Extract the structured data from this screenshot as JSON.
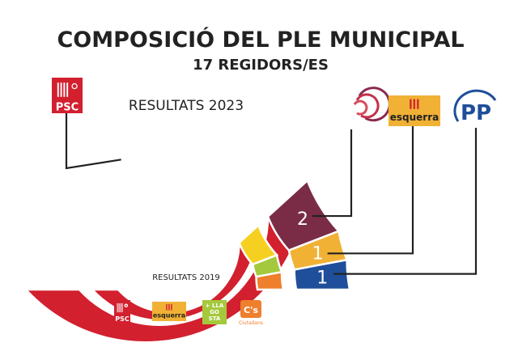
{
  "title": "COMPOSICIÓ DEL PLE MUNICIPAL",
  "subtitle": "17 REGIDORS/ES",
  "chart_data": [
    {
      "type": "pie",
      "title": "RESULTATS 2023",
      "series": [
        {
          "name": "PSC",
          "value": 13,
          "color": "#d2202f",
          "logo_text": "PSC",
          "icon": "psc-logo-icon"
        },
        {
          "name": "",
          "value": 2,
          "color": "#7a2c47",
          "icon": "comuns-logo-icon"
        },
        {
          "name": "esquerra",
          "value": 1,
          "color": "#f0b135",
          "logo_text": "esquerra",
          "icon": "esquerra-logo-icon"
        },
        {
          "name": "PP",
          "value": 1,
          "color": "#1f4e9a",
          "logo_text": "PP",
          "icon": "pp-logo-icon"
        }
      ]
    },
    {
      "type": "pie",
      "title": "RESULTATS 2019",
      "series": [
        {
          "name": "PSC",
          "value": 13,
          "color": "#d2202f",
          "logo_text": "PSC",
          "icon": "psc-logo-icon"
        },
        {
          "name": "esquerra",
          "value": 2,
          "color": "#f5d020",
          "logo_text": "esquerra",
          "icon": "esquerra-logo-icon"
        },
        {
          "name": "",
          "value": 1,
          "color": "#a4c93c",
          "logo_text": "+ LLA GO STA",
          "icon": "llagosta-logo-icon"
        },
        {
          "name": "Cs",
          "value": 1,
          "color": "#ee7f2d",
          "logo_text": "C's",
          "logo_subtext": "Ciutadans",
          "icon": "cs-logo-icon"
        }
      ]
    }
  ]
}
